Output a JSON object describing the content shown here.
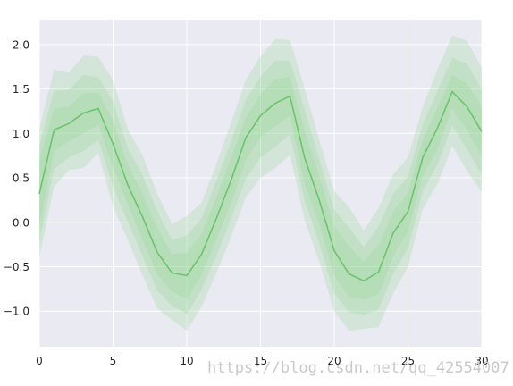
{
  "chart_data": {
    "type": "area",
    "grid": true,
    "xlim": [
      0,
      30
    ],
    "ylim": [
      -1.4,
      2.28
    ],
    "xticks": [
      0,
      5,
      10,
      15,
      20,
      25,
      30
    ],
    "yticks": [
      -1.0,
      -0.5,
      0.0,
      0.5,
      1.0,
      1.5,
      2.0
    ],
    "xtick_labels": [
      "0",
      "5",
      "10",
      "15",
      "20",
      "25",
      "30"
    ],
    "ytick_labels": [
      "−1.0",
      "−0.5",
      "0.0",
      "0.5",
      "1.0",
      "1.5",
      "2.0"
    ],
    "x": [
      0,
      1,
      2,
      3,
      4,
      5,
      6,
      7,
      8,
      9,
      10,
      11,
      12,
      13,
      14,
      15,
      16,
      17,
      18,
      19,
      20,
      21,
      22,
      23,
      24,
      25,
      26,
      27,
      28,
      29,
      30
    ],
    "center_line": {
      "color": "#6cc46c",
      "values": [
        0.32,
        1.04,
        1.11,
        1.23,
        1.28,
        0.88,
        0.42,
        0.06,
        -0.34,
        -0.57,
        -0.6,
        -0.36,
        0.04,
        0.47,
        0.95,
        1.2,
        1.34,
        1.42,
        0.72,
        0.24,
        -0.32,
        -0.58,
        -0.66,
        -0.56,
        -0.12,
        0.12,
        0.73,
        1.06,
        1.47,
        1.3,
        1.02
      ]
    },
    "bands": [
      {
        "color": "#8fd48f",
        "opacity": 0.25,
        "upper": [
          1.05,
          1.72,
          1.68,
          1.88,
          1.86,
          1.6,
          1.05,
          0.75,
          0.32,
          -0.02,
          0.07,
          0.22,
          0.65,
          1.12,
          1.6,
          1.87,
          2.06,
          2.05,
          1.5,
          0.92,
          0.35,
          0.17,
          -0.09,
          0.16,
          0.54,
          0.73,
          1.3,
          1.72,
          2.1,
          2.04,
          1.74
        ],
        "lower": [
          -0.4,
          0.4,
          0.59,
          0.61,
          0.78,
          0.18,
          -0.2,
          -0.6,
          -0.97,
          -1.1,
          -1.22,
          -0.95,
          -0.57,
          -0.17,
          0.28,
          0.5,
          0.61,
          0.76,
          0.02,
          -0.45,
          -1.0,
          -1.22,
          -1.2,
          -1.18,
          -0.8,
          -0.5,
          0.15,
          0.43,
          0.86,
          0.58,
          0.34
        ]
      },
      {
        "color": "#8fd48f",
        "opacity": 0.25,
        "upper": [
          0.86,
          1.48,
          1.49,
          1.66,
          1.63,
          1.36,
          0.83,
          0.53,
          0.12,
          -0.2,
          -0.15,
          0.04,
          0.46,
          0.91,
          1.38,
          1.64,
          1.82,
          1.82,
          1.26,
          0.7,
          0.14,
          -0.06,
          -0.28,
          -0.05,
          0.32,
          0.51,
          1.1,
          1.48,
          1.85,
          1.78,
          1.5
        ],
        "lower": [
          -0.22,
          0.6,
          0.73,
          0.8,
          0.93,
          0.4,
          0.01,
          -0.38,
          -0.77,
          -0.94,
          -1.03,
          -0.76,
          -0.38,
          0.04,
          0.49,
          0.73,
          0.85,
          0.99,
          0.24,
          -0.24,
          -0.8,
          -1.01,
          -1.04,
          -0.98,
          -0.58,
          -0.29,
          0.35,
          0.65,
          1.09,
          0.82,
          0.54
        ]
      },
      {
        "color": "#8fd48f",
        "opacity": 0.25,
        "upper": [
          0.69,
          1.28,
          1.3,
          1.45,
          1.46,
          1.14,
          0.64,
          0.33,
          -0.07,
          -0.36,
          -0.34,
          -0.13,
          0.28,
          0.72,
          1.18,
          1.44,
          1.61,
          1.63,
          1.03,
          0.51,
          -0.04,
          -0.27,
          -0.44,
          -0.26,
          0.12,
          0.33,
          0.93,
          1.29,
          1.66,
          1.56,
          1.3
        ],
        "lower": [
          -0.04,
          0.8,
          0.91,
          1.0,
          1.1,
          0.62,
          0.2,
          -0.2,
          -0.58,
          -0.78,
          -0.86,
          -0.59,
          -0.2,
          0.22,
          0.7,
          0.96,
          1.08,
          1.2,
          0.43,
          -0.03,
          -0.6,
          -0.84,
          -0.87,
          -0.81,
          -0.38,
          -0.1,
          0.52,
          0.83,
          1.28,
          1.04,
          0.74
        ]
      }
    ],
    "style": {
      "plot_background": "#eaeaf2",
      "grid_color": "#ffffff"
    }
  },
  "watermark": "https://blog.csdn.net/qq_42554007"
}
